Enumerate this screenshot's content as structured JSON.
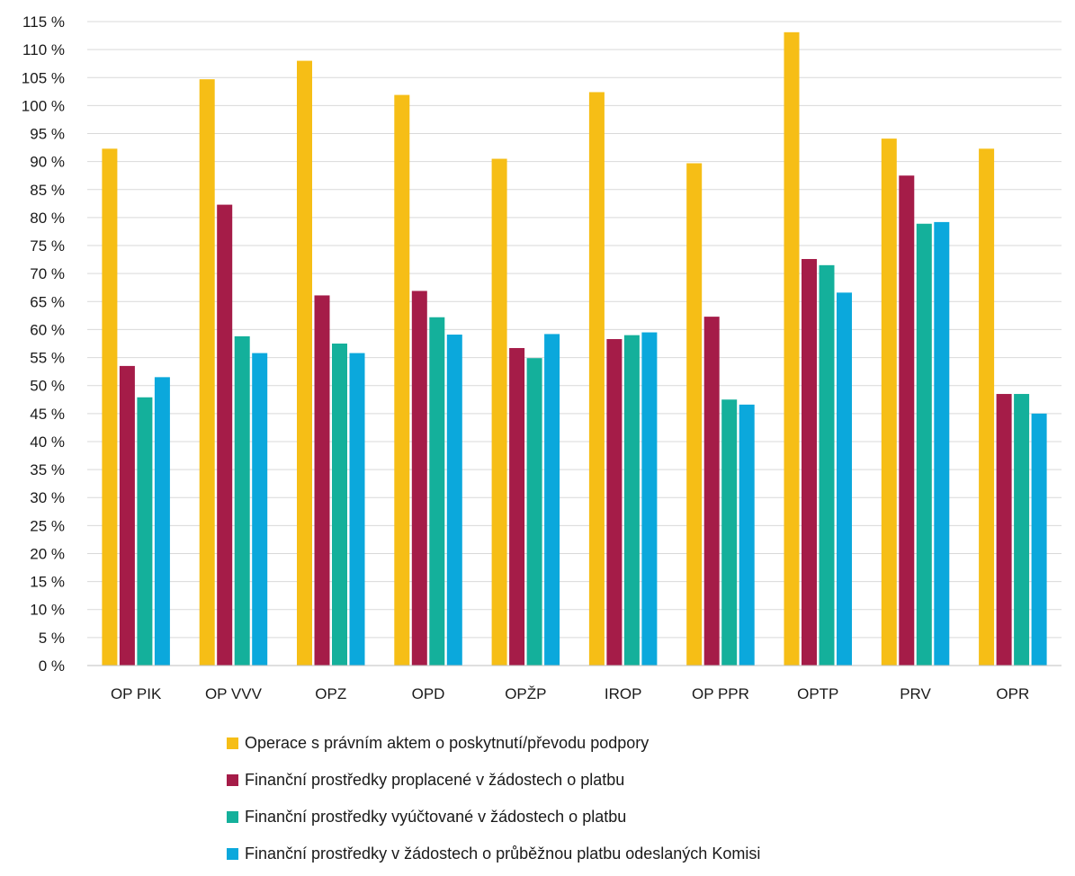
{
  "chart_data": {
    "type": "bar",
    "title": "",
    "xlabel": "",
    "ylabel": "",
    "ylim": [
      0,
      115
    ],
    "ytick_step": 5,
    "ytick_suffix": " %",
    "grid": true,
    "legend_position": "bottom",
    "categories": [
      "OP PIK",
      "OP VVV",
      "OPZ",
      "OPD",
      "OPŽP",
      "IROP",
      "OP PPR",
      "OPTP",
      "PRV",
      "OPR"
    ],
    "series": [
      {
        "name": "Operace s právním aktem o poskytnutí/převodu podpory",
        "color": "#F6BE16",
        "values": [
          92.3,
          104.7,
          108.0,
          101.9,
          90.5,
          102.4,
          89.7,
          113.1,
          94.1,
          92.3
        ]
      },
      {
        "name": "Finanční prostředky proplacené v žádostech o platbu",
        "color": "#A51C48",
        "values": [
          53.5,
          82.3,
          66.1,
          66.9,
          56.7,
          58.3,
          62.3,
          72.6,
          87.5,
          48.5
        ]
      },
      {
        "name": "Finanční prostředky vyúčtované v žádostech o platbu",
        "color": "#14B09B",
        "values": [
          47.9,
          58.8,
          57.5,
          62.2,
          54.9,
          59.0,
          47.5,
          71.5,
          78.9,
          48.5
        ]
      },
      {
        "name": "Finanční prostředky v žádostech o průběžnou platbu odeslaných Komisi",
        "color": "#0BA8DC",
        "values": [
          51.5,
          55.8,
          55.8,
          59.1,
          59.2,
          59.5,
          46.6,
          66.6,
          79.2,
          45.0
        ]
      }
    ]
  }
}
